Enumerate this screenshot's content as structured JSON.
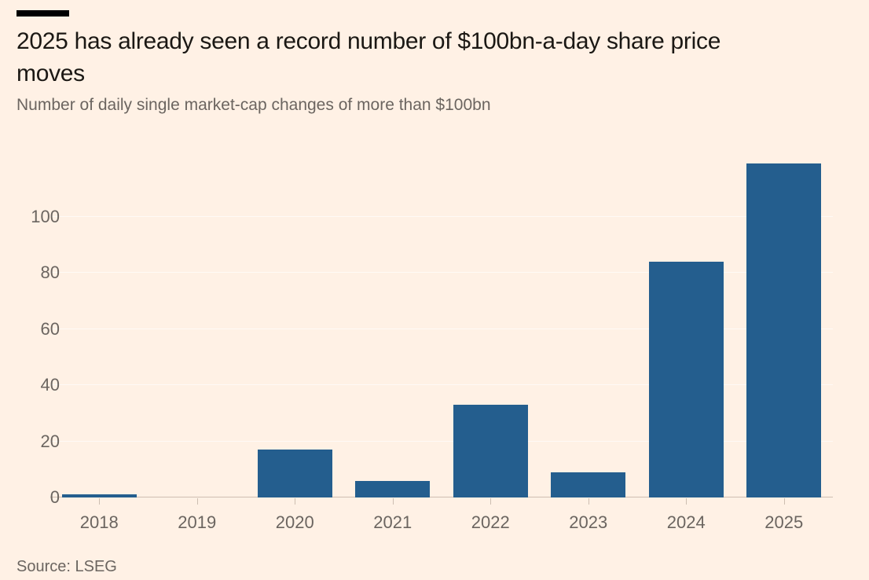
{
  "header": {
    "title": "2025 has already seen a record number of $100bn-a-day share price moves",
    "subtitle": "Number of daily single market-cap changes of more than $100bn"
  },
  "footer": {
    "source": "Source: LSEG"
  },
  "chart_data": {
    "type": "bar",
    "title": "2025 has already seen a record number of $100bn-a-day share price moves",
    "subtitle": "Number of daily single market-cap changes of more than $100bn",
    "source": "Source: LSEG",
    "categories": [
      "2018",
      "2019",
      "2020",
      "2021",
      "2022",
      "2023",
      "2024",
      "2025"
    ],
    "values": [
      1,
      0,
      17,
      6,
      33,
      9,
      84,
      119
    ],
    "xlabel": "",
    "ylabel": "",
    "ylim": [
      0,
      124
    ],
    "yticks": [
      0,
      20,
      40,
      60,
      80,
      100
    ],
    "grid": "horizontal",
    "legend": "none",
    "colors": {
      "bar": "#245E8E",
      "background": "#FFF1E5",
      "accent_bar": "#000000",
      "title_text": "#1B1814",
      "muted_text": "#6B6560",
      "gridline": "rgba(255,255,255,0.65)",
      "axis_line": "#CDBEB1"
    }
  }
}
